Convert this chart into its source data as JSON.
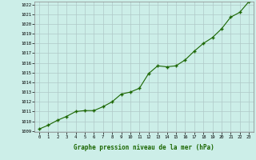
{
  "x": [
    0,
    1,
    2,
    3,
    4,
    5,
    6,
    7,
    8,
    9,
    10,
    11,
    12,
    13,
    14,
    15,
    16,
    17,
    18,
    19,
    20,
    21,
    22,
    23
  ],
  "y": [
    1009.2,
    1009.6,
    1010.1,
    1010.5,
    1011.0,
    1011.1,
    1011.1,
    1011.5,
    1012.0,
    1012.8,
    1013.0,
    1013.4,
    1014.9,
    1015.7,
    1015.6,
    1015.7,
    1016.3,
    1017.2,
    1018.0,
    1018.6,
    1019.5,
    1020.7,
    1021.2,
    1022.3
  ],
  "ylim": [
    1009,
    1022
  ],
  "xlim": [
    -0.5,
    23.5
  ],
  "yticks": [
    1009,
    1010,
    1011,
    1012,
    1013,
    1014,
    1015,
    1016,
    1017,
    1018,
    1019,
    1020,
    1021,
    1022
  ],
  "xticks": [
    0,
    1,
    2,
    3,
    4,
    5,
    6,
    7,
    8,
    9,
    10,
    11,
    12,
    13,
    14,
    15,
    16,
    17,
    18,
    19,
    20,
    21,
    22,
    23
  ],
  "xlabel": "Graphe pression niveau de la mer (hPa)",
  "line_color": "#1a6600",
  "marker": "+",
  "bg_color": "#cceee8",
  "grid_major_color": "#b0c8c8",
  "grid_minor_color": "#d0e8e8",
  "label_color": "#1a6600"
}
